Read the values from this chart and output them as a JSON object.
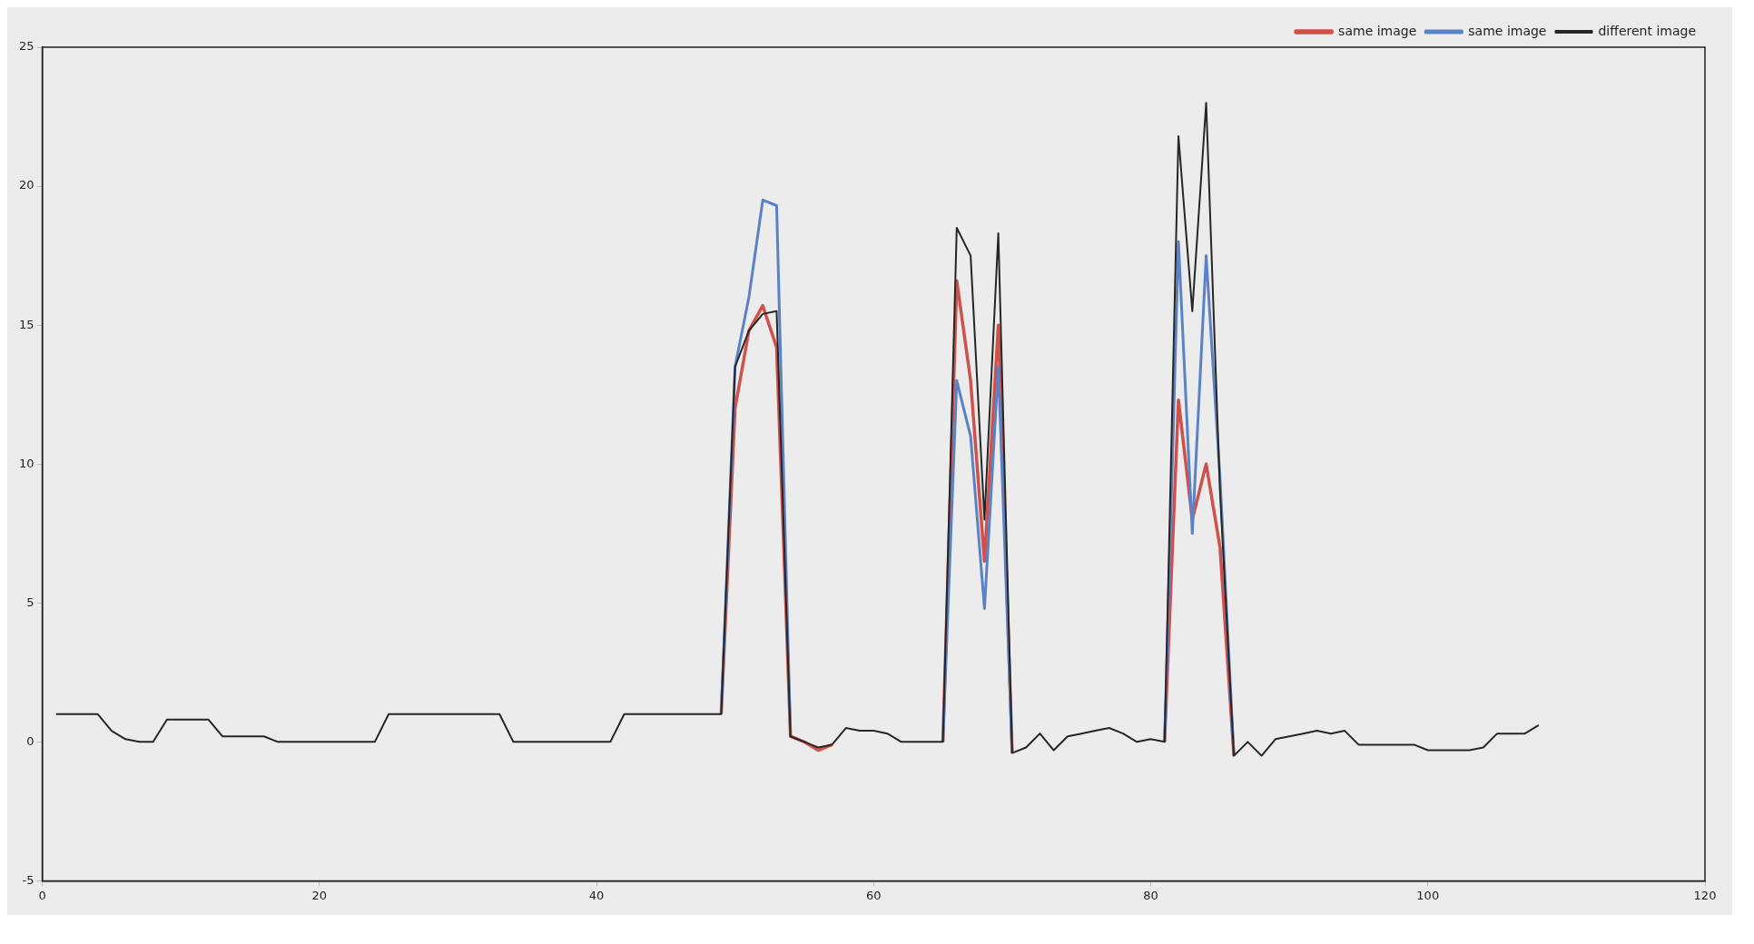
{
  "chart_data": {
    "type": "line",
    "xlim": [
      0,
      120
    ],
    "xticks": [
      0,
      20,
      40,
      60,
      80,
      100,
      120
    ],
    "ylim": [
      -5,
      25
    ],
    "yticks": [
      -5,
      0,
      5,
      10,
      15,
      20,
      25
    ],
    "grid": false,
    "legend": "top right",
    "marker": "none",
    "line_style": "solid",
    "x": [
      1,
      2,
      3,
      4,
      5,
      6,
      7,
      8,
      9,
      10,
      11,
      12,
      13,
      14,
      15,
      16,
      17,
      18,
      19,
      20,
      21,
      22,
      23,
      24,
      25,
      26,
      27,
      28,
      29,
      30,
      31,
      32,
      33,
      34,
      35,
      36,
      37,
      38,
      39,
      40,
      41,
      42,
      43,
      44,
      45,
      46,
      47,
      48,
      49,
      50,
      51,
      52,
      53,
      54,
      55,
      56,
      57,
      58,
      59,
      60,
      61,
      62,
      63,
      64,
      65,
      66,
      67,
      68,
      69,
      70,
      71,
      72,
      73,
      74,
      75,
      76,
      77,
      78,
      79,
      80,
      81,
      82,
      83,
      84,
      85,
      86,
      87,
      88,
      89,
      90,
      91,
      92,
      93,
      94,
      95,
      96,
      97,
      98,
      99,
      100,
      101,
      102,
      103,
      104,
      105,
      106,
      107,
      108
    ],
    "series": [
      {
        "name": "same image",
        "color": "#d0504a",
        "values": [
          null,
          null,
          null,
          null,
          null,
          null,
          null,
          null,
          null,
          null,
          null,
          null,
          null,
          null,
          null,
          null,
          null,
          null,
          null,
          null,
          null,
          null,
          null,
          null,
          null,
          null,
          null,
          null,
          null,
          null,
          null,
          null,
          null,
          null,
          null,
          null,
          null,
          null,
          null,
          null,
          null,
          null,
          null,
          null,
          null,
          null,
          null,
          null,
          1,
          12,
          14.8,
          15.7,
          14.2,
          0.2,
          0,
          -0.3,
          -0.1,
          null,
          null,
          null,
          null,
          null,
          null,
          null,
          0,
          16.6,
          13,
          6.5,
          15,
          -0.4,
          null,
          null,
          null,
          null,
          null,
          null,
          null,
          null,
          null,
          null,
          0,
          12.3,
          8,
          10,
          7,
          -0.5,
          null,
          null,
          null,
          null,
          null,
          null,
          null,
          null,
          null,
          null,
          null,
          null,
          null,
          null,
          null,
          null,
          null,
          null,
          null,
          null,
          null,
          null
        ]
      },
      {
        "name": "same image",
        "color": "#5b82c6",
        "values": [
          null,
          null,
          null,
          null,
          null,
          null,
          null,
          null,
          null,
          null,
          null,
          null,
          null,
          null,
          null,
          null,
          null,
          null,
          null,
          null,
          null,
          null,
          null,
          null,
          null,
          null,
          null,
          null,
          null,
          null,
          null,
          null,
          null,
          null,
          null,
          null,
          null,
          null,
          null,
          null,
          null,
          null,
          null,
          null,
          null,
          null,
          null,
          null,
          1,
          13.5,
          16,
          19.5,
          19.3,
          0.2,
          null,
          null,
          null,
          null,
          null,
          null,
          null,
          null,
          null,
          null,
          0,
          13,
          11,
          4.8,
          13.5,
          -0.4,
          null,
          null,
          null,
          null,
          null,
          null,
          null,
          null,
          null,
          null,
          0,
          18,
          7.5,
          17.5,
          9.5,
          -0.5,
          null,
          null,
          null,
          null,
          null,
          null,
          null,
          null,
          null,
          null,
          null,
          null,
          null,
          null,
          null,
          null,
          null,
          null,
          null,
          null,
          null,
          null
        ]
      },
      {
        "name": "different image",
        "color": "#262626",
        "values": [
          1,
          1,
          1,
          1,
          0.4,
          0.1,
          0,
          0,
          0.8,
          0.8,
          0.8,
          0.8,
          0.2,
          0.2,
          0.2,
          0.2,
          0,
          0,
          0,
          0,
          0,
          0,
          0,
          0,
          1,
          1,
          1,
          1,
          1,
          1,
          1,
          1,
          1,
          0,
          0,
          0,
          0,
          0,
          0,
          0,
          0,
          1,
          1,
          1,
          1,
          1,
          1,
          1,
          1,
          13.5,
          14.8,
          15.4,
          15.5,
          0.2,
          0,
          -0.2,
          -0.1,
          0.5,
          0.4,
          0.4,
          0.3,
          0,
          0,
          0,
          0,
          18.5,
          17.5,
          8,
          18.3,
          -0.4,
          -0.2,
          0.3,
          -0.3,
          0.2,
          0.3,
          0.4,
          0.5,
          0.3,
          0,
          0.1,
          0,
          21.8,
          15.5,
          23,
          9,
          -0.5,
          0,
          -0.5,
          0.1,
          0.2,
          0.3,
          0.4,
          0.3,
          0.4,
          -0.1,
          -0.1,
          -0.1,
          -0.1,
          -0.1,
          -0.3,
          -0.3,
          -0.3,
          -0.3,
          -0.2,
          0.3,
          0.3,
          0.3,
          0.6
        ]
      }
    ]
  }
}
